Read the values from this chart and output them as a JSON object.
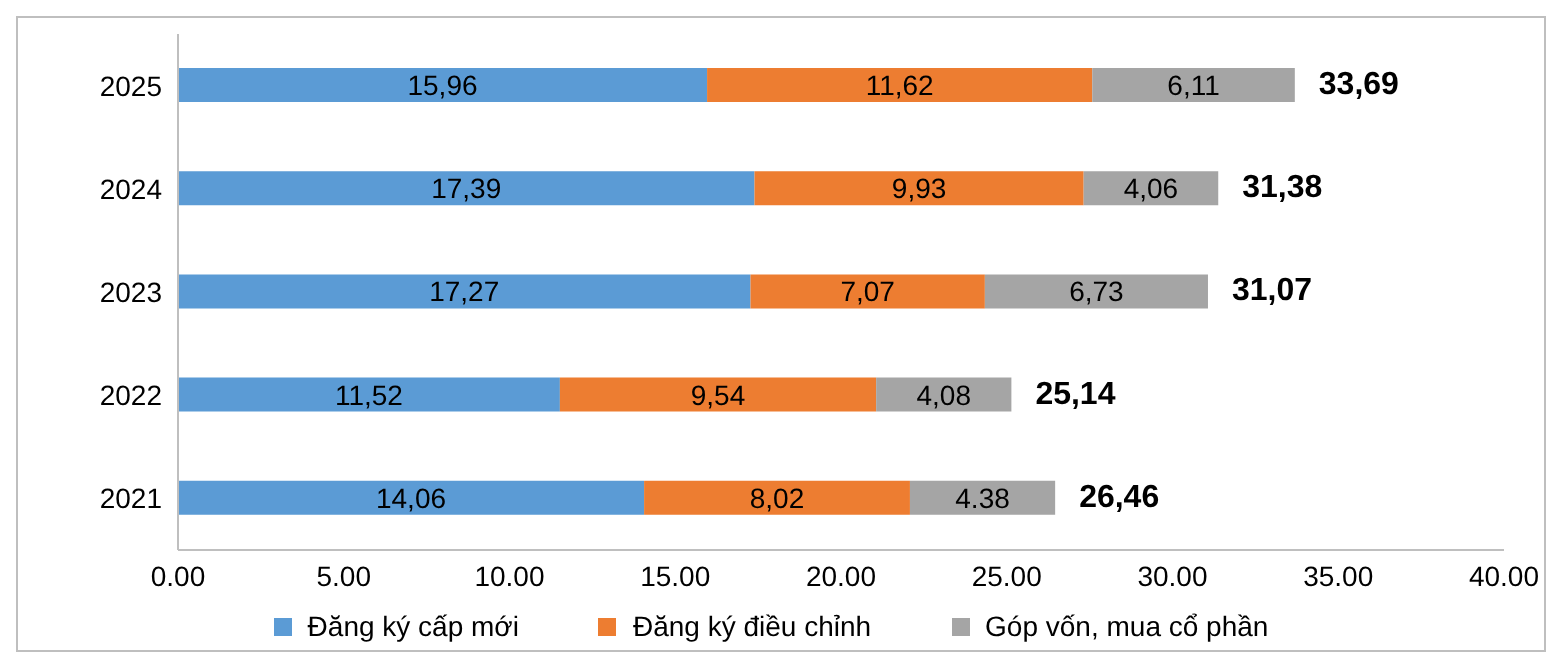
{
  "chart_data": {
    "type": "bar",
    "orientation": "horizontal",
    "stacked": true,
    "categories": [
      "2025",
      "2024",
      "2023",
      "2022",
      "2021"
    ],
    "series": [
      {
        "name": "Đăng ký cấp mới",
        "color": "#5b9bd5",
        "values": [
          15.96,
          17.39,
          17.27,
          11.52,
          14.06
        ],
        "value_labels": [
          "15,96",
          "17,39",
          "17,27",
          "11,52",
          "14,06"
        ]
      },
      {
        "name": "Đăng ký điều chỉnh",
        "color": "#ed7d31",
        "values": [
          11.62,
          9.93,
          7.07,
          9.54,
          8.02
        ],
        "value_labels": [
          "11,62",
          "9,93",
          "7,07",
          "9,54",
          "8,02"
        ]
      },
      {
        "name": "Góp vốn, mua cổ phần",
        "color": "#a5a5a5",
        "values": [
          6.11,
          4.06,
          6.73,
          4.08,
          4.38
        ],
        "value_labels": [
          "6,11",
          "4,06",
          "6,73",
          "4,08",
          "4.38"
        ]
      }
    ],
    "totals": [
      "33,69",
      "31,38",
      "31,07",
      "25,14",
      "26,46"
    ],
    "xlim": [
      0,
      40
    ],
    "xticks": [
      {
        "value": 0,
        "label": "0.00"
      },
      {
        "value": 5,
        "label": "5.00"
      },
      {
        "value": 10,
        "label": "10.00"
      },
      {
        "value": 15,
        "label": "15.00"
      },
      {
        "value": 20,
        "label": "20.00"
      },
      {
        "value": 25,
        "label": "25.00"
      },
      {
        "value": 30,
        "label": "30.00"
      },
      {
        "value": 35,
        "label": "35.00"
      },
      {
        "value": 40,
        "label": "40.00"
      }
    ],
    "grid": false,
    "legend": "bottom"
  }
}
